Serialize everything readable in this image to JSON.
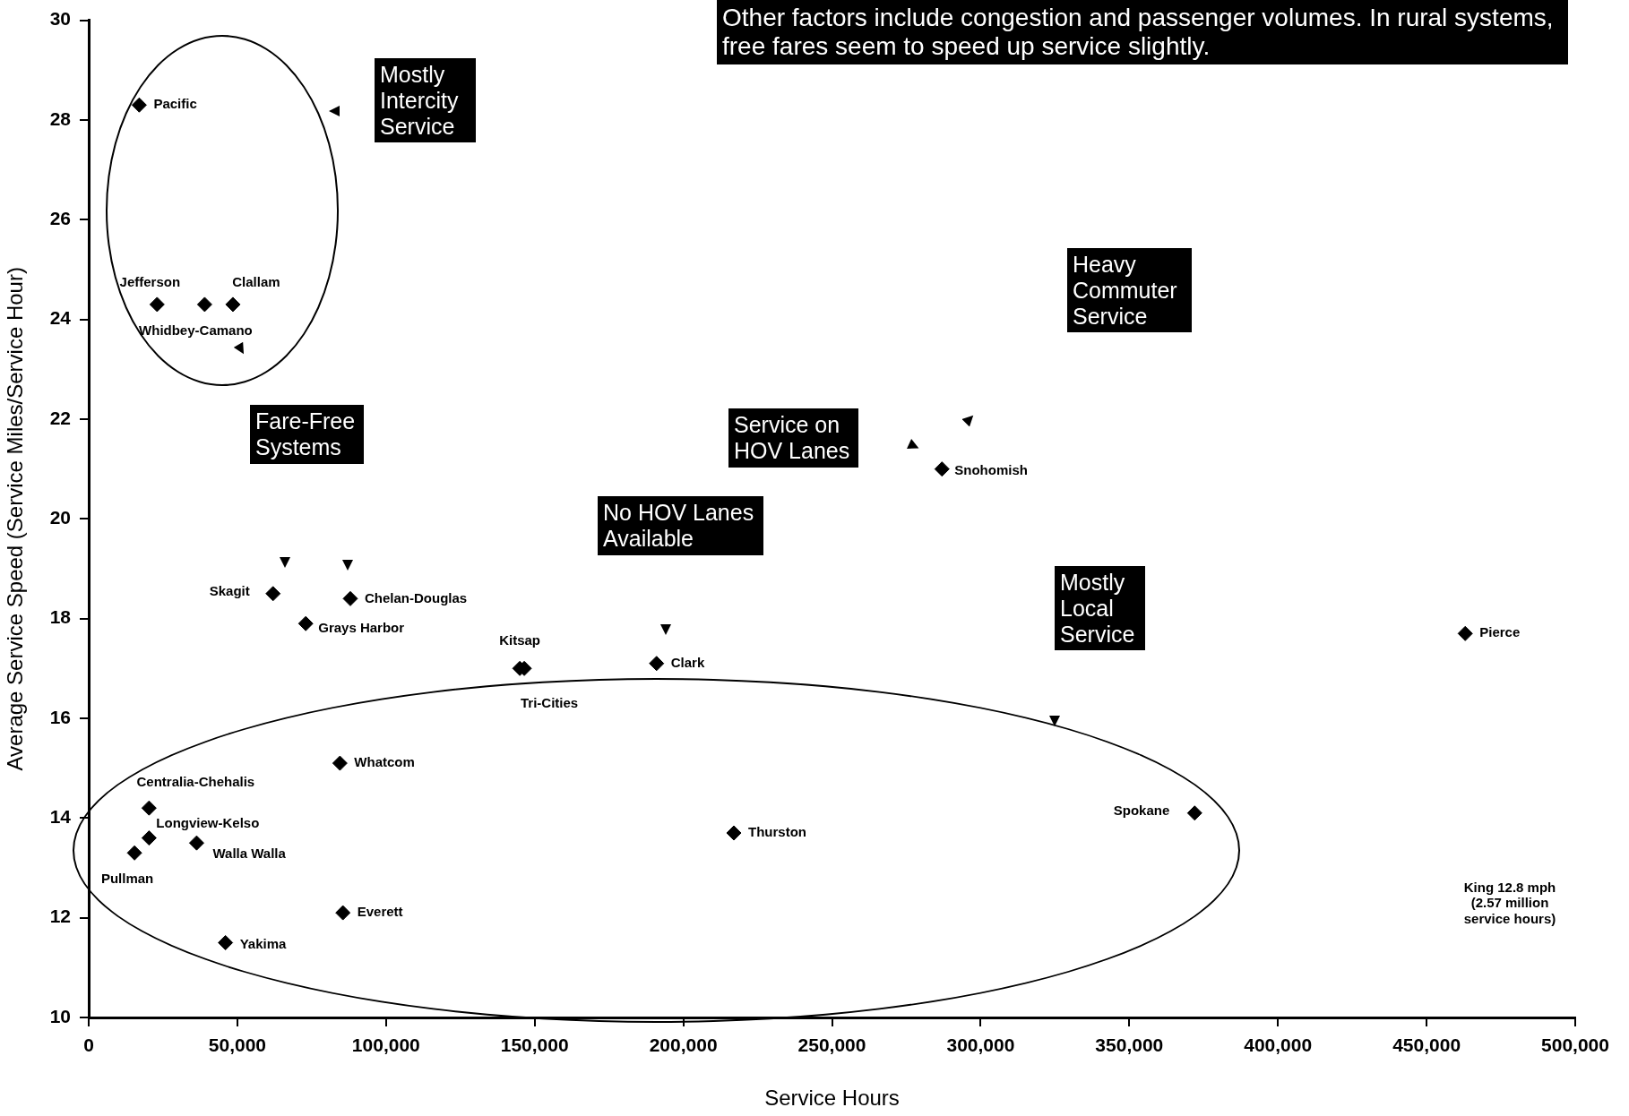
{
  "chart_data": {
    "type": "scatter",
    "xlabel": "Service Hours",
    "ylabel": "Average Service Speed (Service Miles/Service Hour)",
    "xlim": [
      0,
      500000
    ],
    "ylim": [
      10,
      30
    ],
    "xticks": [
      0,
      {
        "value": 50000,
        "label": "50,000"
      },
      {
        "value": 100000,
        "label": "100,000"
      },
      {
        "value": 150000,
        "label": "150,000"
      },
      {
        "value": 200000,
        "label": "200,000"
      },
      {
        "value": 250000,
        "label": "250,000"
      },
      {
        "value": 300000,
        "label": "300,000"
      },
      {
        "value": 350000,
        "label": "350,000"
      },
      {
        "value": 400000,
        "label": "400,000"
      },
      {
        "value": 450000,
        "label": "450,000"
      },
      {
        "value": 500000,
        "label": "500,000"
      }
    ],
    "yticks": [
      10,
      12,
      14,
      16,
      18,
      20,
      22,
      24,
      26,
      28,
      30
    ],
    "grid": false,
    "legend": false,
    "marker": "diamond",
    "series": [
      {
        "name": "Pacific",
        "color": "#000000",
        "x": [
          17000
        ],
        "values": [
          28.3
        ]
      },
      {
        "name": "Jefferson",
        "color": "#000000",
        "x": [
          23000
        ],
        "values": [
          24.3
        ]
      },
      {
        "name": "Whidbey-Camano",
        "color": "#000000",
        "x": [
          39000
        ],
        "values": [
          24.3
        ]
      },
      {
        "name": "Clallam",
        "color": "#000000",
        "x": [
          48500
        ],
        "values": [
          24.3
        ]
      },
      {
        "name": "Skagit",
        "color": "#000000",
        "x": [
          62000
        ],
        "values": [
          18.5
        ]
      },
      {
        "name": "Chelan-Douglas",
        "color": "#000000",
        "x": [
          88000
        ],
        "values": [
          18.4
        ]
      },
      {
        "name": "Grays Harbor",
        "color": "#000000",
        "x": [
          73000
        ],
        "values": [
          17.9
        ]
      },
      {
        "name": "Kitsap",
        "color": "#000000",
        "x": [
          145000
        ],
        "values": [
          17.0
        ]
      },
      {
        "name": "Tri-Cities",
        "color": "#000000",
        "x": [
          146500
        ],
        "values": [
          17.0
        ]
      },
      {
        "name": "Clark",
        "color": "#000000",
        "x": [
          191000
        ],
        "values": [
          17.1
        ]
      },
      {
        "name": "Snohomish",
        "color": "#000000",
        "x": [
          287000
        ],
        "values": [
          21.0
        ]
      },
      {
        "name": "Pierce",
        "color": "#000000",
        "x": [
          463000
        ],
        "values": [
          17.7
        ]
      },
      {
        "name": "Spokane",
        "color": "#000000",
        "x": [
          372000
        ],
        "values": [
          14.1
        ]
      },
      {
        "name": "Thurston",
        "color": "#000000",
        "x": [
          217000
        ],
        "values": [
          13.7
        ]
      },
      {
        "name": "Whatcom",
        "color": "#000000",
        "x": [
          84500
        ],
        "values": [
          15.1
        ]
      },
      {
        "name": "Centralia-Chehalis",
        "color": "#000000",
        "x": [
          20300
        ],
        "values": [
          14.2
        ]
      },
      {
        "name": "Longview-Kelso",
        "color": "#000000",
        "x": [
          20300
        ],
        "values": [
          13.6
        ]
      },
      {
        "name": "Walla Walla",
        "color": "#000000",
        "x": [
          36300
        ],
        "values": [
          13.5
        ]
      },
      {
        "name": "Pullman",
        "color": "#000000",
        "x": [
          15400
        ],
        "values": [
          13.3
        ]
      },
      {
        "name": "Everett",
        "color": "#000000",
        "x": [
          85500
        ],
        "values": [
          12.1
        ]
      },
      {
        "name": "Yakima",
        "color": "#000000",
        "x": [
          46000
        ],
        "values": [
          11.5
        ]
      }
    ],
    "annotations": [
      "Other factors include congestion and passenger volumes.  In rural systems, free fares seem to speed up service slightly.",
      "Mostly Intercity Service",
      "Fare-Free Systems",
      "Service on HOV Lanes",
      "No HOV Lanes Available",
      "Heavy Commuter Service",
      "Mostly Local Service",
      "King 12.8 mph (2.57 million service hours)"
    ]
  }
}
